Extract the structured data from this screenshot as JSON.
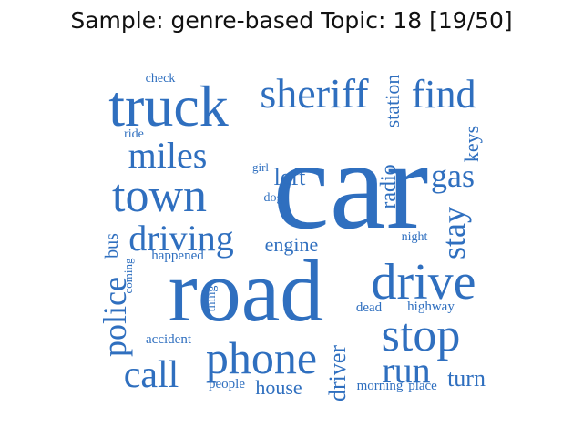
{
  "title": "Sample: genre-based Topic: 18 [19/50]",
  "color": "#2f6fbf",
  "words": [
    {
      "text": "car"
    },
    {
      "text": "road"
    },
    {
      "text": "truck"
    },
    {
      "text": "drive"
    },
    {
      "text": "sheriff"
    },
    {
      "text": "find"
    },
    {
      "text": "town"
    },
    {
      "text": "stop"
    },
    {
      "text": "phone"
    },
    {
      "text": "miles"
    },
    {
      "text": "driving"
    },
    {
      "text": "call"
    },
    {
      "text": "run"
    },
    {
      "text": "gas"
    },
    {
      "text": "police"
    },
    {
      "text": "stay"
    },
    {
      "text": "left"
    },
    {
      "text": "station"
    },
    {
      "text": "radio"
    },
    {
      "text": "keys"
    },
    {
      "text": "engine"
    },
    {
      "text": "turn"
    },
    {
      "text": "house"
    },
    {
      "text": "driver"
    },
    {
      "text": "bus"
    },
    {
      "text": "check"
    },
    {
      "text": "ride"
    },
    {
      "text": "girl"
    },
    {
      "text": "dog"
    },
    {
      "text": "night"
    },
    {
      "text": "happened"
    },
    {
      "text": "coming"
    },
    {
      "text": "thing"
    },
    {
      "text": "dead"
    },
    {
      "text": "highway"
    },
    {
      "text": "accident"
    },
    {
      "text": "people"
    },
    {
      "text": "morning"
    },
    {
      "text": "place"
    }
  ]
}
